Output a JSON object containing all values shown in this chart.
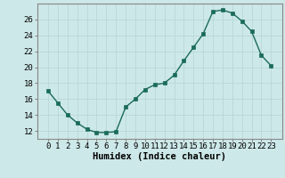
{
  "x": [
    0,
    1,
    2,
    3,
    4,
    5,
    6,
    7,
    8,
    9,
    10,
    11,
    12,
    13,
    14,
    15,
    16,
    17,
    18,
    19,
    20,
    21,
    22,
    23
  ],
  "y": [
    17.0,
    15.5,
    14.0,
    13.0,
    12.2,
    11.8,
    11.8,
    11.9,
    15.0,
    16.0,
    17.2,
    17.8,
    18.0,
    19.0,
    20.8,
    22.5,
    24.2,
    27.0,
    27.2,
    26.8,
    25.8,
    24.5,
    21.5,
    20.2
  ],
  "line_color": "#1a6b5a",
  "marker_color": "#1a6b5a",
  "bg_color": "#cde8e8",
  "grid_color": "#b8d8d8",
  "xlabel": "Humidex (Indice chaleur)",
  "ylim": [
    11.0,
    28.0
  ],
  "yticks": [
    12,
    14,
    16,
    18,
    20,
    22,
    24,
    26
  ],
  "xticks": [
    0,
    1,
    2,
    3,
    4,
    5,
    6,
    7,
    8,
    9,
    10,
    11,
    12,
    13,
    14,
    15,
    16,
    17,
    18,
    19,
    20,
    21,
    22,
    23
  ],
  "xlabel_fontsize": 7.5,
  "tick_fontsize": 6.5,
  "axis_color": "#888888",
  "marker_size": 2.5
}
